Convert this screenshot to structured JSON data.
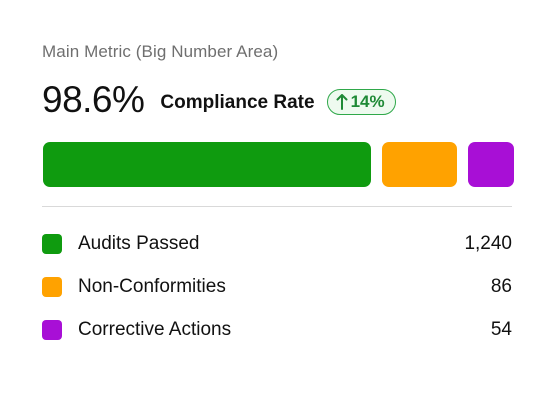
{
  "card": {
    "subtitle": "Main Metric (Big Number Area)",
    "metric": {
      "value": "98.6%",
      "label": "Compliance Rate",
      "delta": "14%",
      "delta_icon": "arrow-up-icon",
      "delta_color": "#1f8a36"
    }
  },
  "legend": {
    "items": [
      {
        "label": "Audits Passed",
        "value": "1,240",
        "count": 1240,
        "color": "#0f9b0f"
      },
      {
        "label": "Non-Conformities",
        "value": "86",
        "count": 86,
        "color": "#ffa200"
      },
      {
        "label": "Corrective Actions",
        "value": "54",
        "count": 54,
        "color": "#a80fd6"
      }
    ]
  }
}
